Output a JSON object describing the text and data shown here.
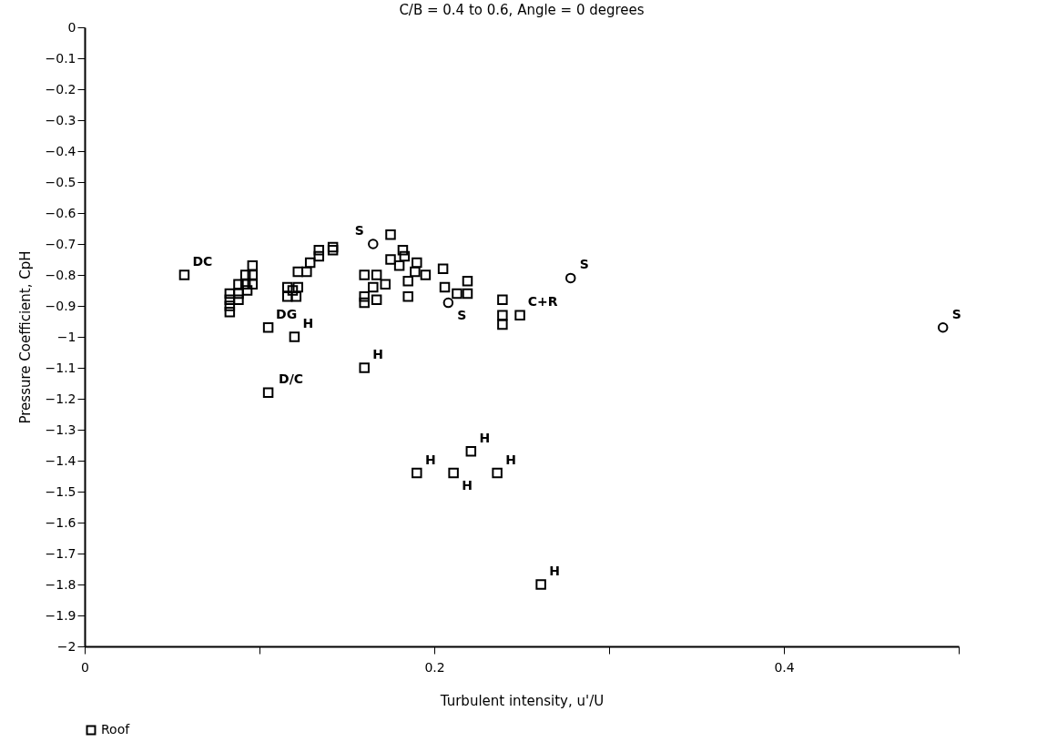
{
  "chart_data": {
    "type": "scatter",
    "title": "C/B = 0.4 to 0.6, Angle = 0 degrees",
    "xlabel": "Turbulent intensity, u'/U",
    "ylabel": "Pressure Coefficient, CpH",
    "xlim": [
      0,
      0.5
    ],
    "xticks": [
      0,
      {
        "value": 0.1,
        "label": null
      },
      0.2,
      {
        "value": 0.3,
        "label": null
      },
      0.4,
      {
        "value": 0.5,
        "label": null
      }
    ],
    "ylim": [
      -2,
      0
    ],
    "yticks": [
      0,
      -0.1,
      -0.2,
      -0.3,
      -0.4,
      -0.5,
      -0.6,
      -0.7,
      -0.8,
      -0.9,
      -1,
      -1.1,
      -1.2,
      -1.3,
      -1.4,
      -1.5,
      -1.6,
      -1.7,
      -1.8,
      -1.9,
      -2
    ],
    "grid": false,
    "legend": "bottom",
    "series": [
      {
        "name": "Roof",
        "color": "#000000",
        "marker": "square",
        "x": [
          0.057,
          0.083,
          0.083,
          0.083,
          0.083,
          0.088,
          0.092,
          0.088,
          0.093,
          0.096,
          0.096,
          0.096,
          0.092,
          0.088,
          0.105,
          0.12,
          0.105,
          0.16,
          0.116,
          0.119,
          0.122,
          0.116,
          0.121,
          0.122,
          0.127,
          0.129,
          0.134,
          0.134,
          0.142,
          0.142,
          0.175,
          0.182,
          0.183,
          0.175,
          0.18,
          0.19,
          0.189,
          0.195,
          0.185,
          0.185,
          0.16,
          0.167,
          0.172,
          0.16,
          0.167,
          0.16,
          0.165,
          0.205,
          0.206,
          0.219,
          0.219,
          0.213,
          0.239,
          0.239,
          0.239,
          0.249,
          0.19,
          0.211,
          0.221,
          0.236,
          0.261
        ],
        "values": [
          -0.8,
          -0.92,
          -0.9,
          -0.88,
          -0.86,
          -0.83,
          -0.83,
          -0.86,
          -0.85,
          -0.77,
          -0.8,
          -0.83,
          -0.8,
          -0.88,
          -0.97,
          -1,
          -1.18,
          -1.1,
          -0.87,
          -0.85,
          -0.84,
          -0.84,
          -0.87,
          -0.79,
          -0.79,
          -0.76,
          -0.74,
          -0.72,
          -0.71,
          -0.72,
          -0.67,
          -0.72,
          -0.74,
          -0.75,
          -0.77,
          -0.76,
          -0.79,
          -0.8,
          -0.82,
          -0.87,
          -0.8,
          -0.8,
          -0.83,
          -0.87,
          -0.88,
          -0.89,
          -0.84,
          -0.78,
          -0.84,
          -0.82,
          -0.86,
          -0.86,
          -0.88,
          -0.93,
          -0.96,
          -0.93,
          -1.44,
          -1.44,
          -1.37,
          -1.44,
          -1.8
        ]
      },
      {
        "color": "#000000",
        "marker": "circle",
        "x": [
          0.165,
          0.208,
          0.278,
          0.491
        ],
        "values": [
          -0.7,
          -0.89,
          -0.81,
          -0.97
        ]
      }
    ],
    "annotations": [
      {
        "text": "DC",
        "x": 0.057,
        "y": -0.8
      },
      {
        "text": "DG",
        "x": 0.105,
        "y": -0.97
      },
      {
        "text": "H",
        "x": 0.12,
        "y": -1
      },
      {
        "text": "D/C",
        "x": 0.105,
        "y": -1.18
      },
      {
        "text": "H",
        "x": 0.16,
        "y": -1.1
      },
      {
        "text": "S",
        "x": 0.165,
        "y": -0.7
      },
      {
        "text": "S",
        "x": 0.208,
        "y": -0.89
      },
      {
        "text": "C+R",
        "x": 0.249,
        "y": -0.93
      },
      {
        "text": "S",
        "x": 0.278,
        "y": -0.81
      },
      {
        "text": "S",
        "x": 0.491,
        "y": -0.97
      },
      {
        "text": "H",
        "x": 0.19,
        "y": -1.44
      },
      {
        "text": "H",
        "x": 0.211,
        "y": -1.44
      },
      {
        "text": "H",
        "x": 0.221,
        "y": -1.37
      },
      {
        "text": "H",
        "x": 0.236,
        "y": -1.44
      },
      {
        "text": "H",
        "x": 0.261,
        "y": -1.8
      }
    ]
  }
}
